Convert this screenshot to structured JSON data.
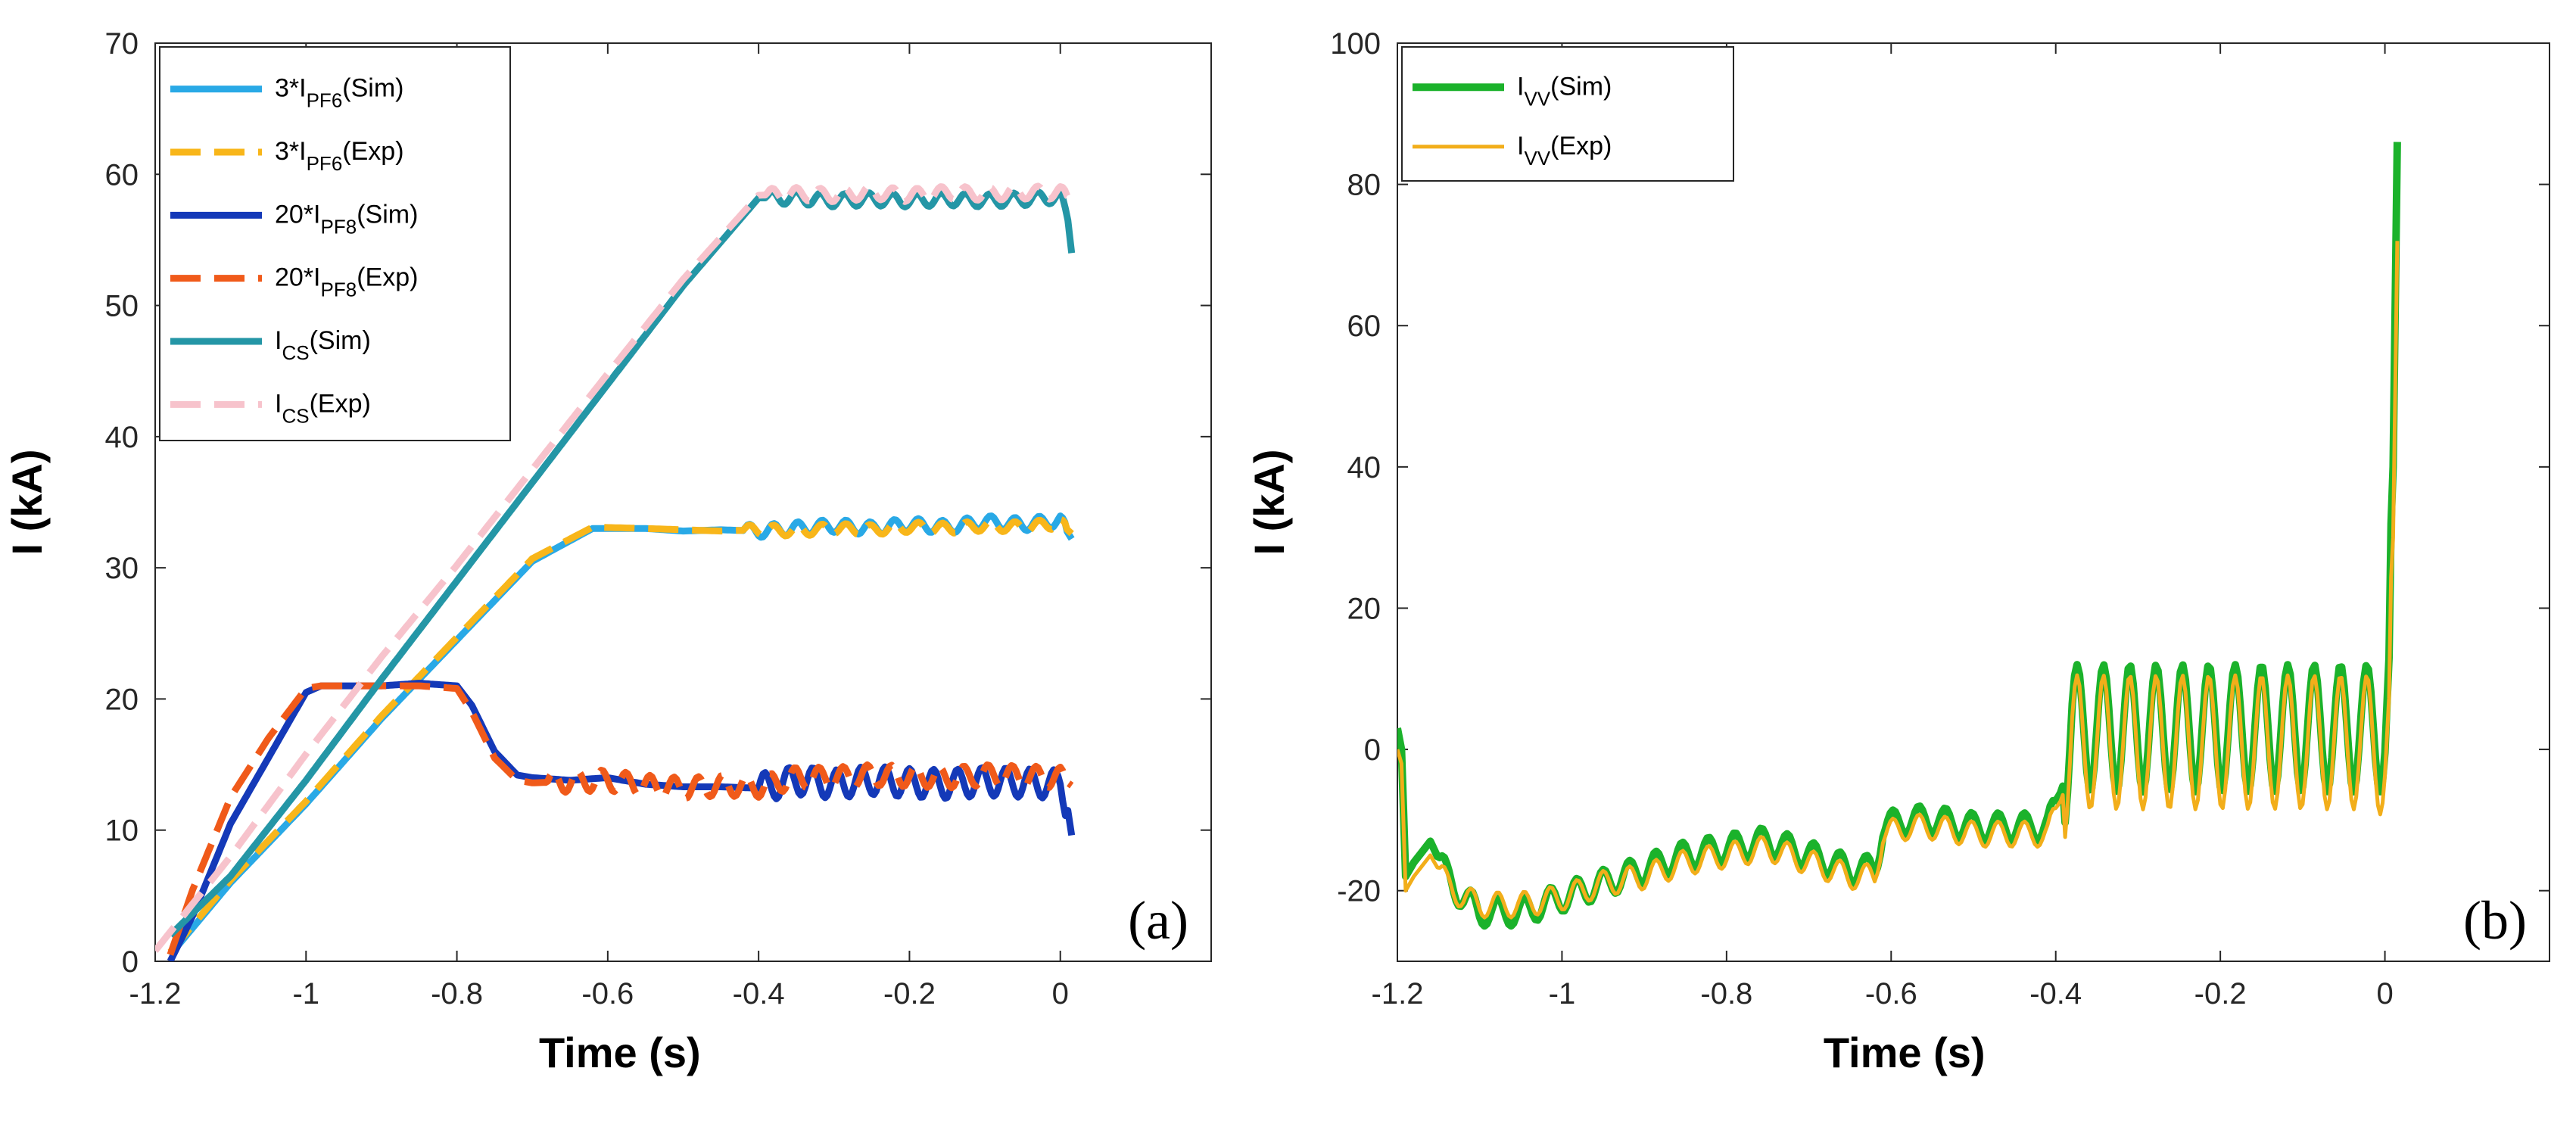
{
  "chart_data": [
    {
      "type": "line",
      "panel_label": "(a)",
      "xlabel": "Time (s)",
      "ylabel": "I (kA)",
      "xlim": [
        -1.2,
        0.2
      ],
      "ylim": [
        0,
        70
      ],
      "xticks": [
        -1.2,
        -1,
        -0.8,
        -0.6,
        -0.4,
        -0.2,
        0
      ],
      "xtick_labels": [
        "-1.2",
        "-1",
        "-0.8",
        "-0.6",
        "-0.4",
        "-0.2",
        "0"
      ],
      "yticks": [
        0,
        10,
        20,
        30,
        40,
        50,
        60,
        70
      ],
      "ytick_labels": [
        "0",
        "10",
        "20",
        "30",
        "40",
        "50",
        "60",
        "70"
      ],
      "grid": false,
      "legend_position": "top-left",
      "series": [
        {
          "key": "pf6-sim",
          "name_main": "3*I",
          "name_sub": "PF6",
          "name_tail": "(Sim)",
          "color": "#29a9e6",
          "style": "solid",
          "width": 9,
          "x": [
            -1.18,
            -1.1,
            -1.0,
            -0.9,
            -0.8,
            -0.7,
            -0.62,
            -0.55,
            -0.5,
            -0.45,
            -0.4,
            -0.35,
            -0.3,
            -0.25,
            -0.2,
            -0.15,
            -0.1,
            -0.05,
            0.0,
            0.015
          ],
          "y": [
            0.5,
            6,
            12,
            18.5,
            24.5,
            30.5,
            33.0,
            33.0,
            32.8,
            32.9,
            32.8,
            33.0,
            33.2,
            33.0,
            33.3,
            33.1,
            33.5,
            33.3,
            33.6,
            32.2
          ],
          "ripple_from": -0.42,
          "ripple_amp": 0.5
        },
        {
          "key": "pf6-exp",
          "name_main": "3*I",
          "name_sub": "PF6",
          "name_tail": "(Exp)",
          "color": "#f8b61a",
          "style": "dashed",
          "width": 9,
          "x": [
            -1.18,
            -1.1,
            -1.0,
            -0.9,
            -0.8,
            -0.7,
            -0.62,
            -0.55,
            -0.5,
            -0.45,
            -0.4,
            -0.35,
            -0.3,
            -0.25,
            -0.2,
            -0.15,
            -0.1,
            -0.05,
            0.0,
            0.015
          ],
          "y": [
            0.7,
            6.2,
            12.2,
            18.7,
            24.7,
            30.7,
            33.1,
            33.0,
            32.9,
            32.8,
            32.9,
            32.8,
            33.0,
            32.9,
            33.1,
            33.0,
            33.2,
            33.1,
            33.4,
            32.6
          ],
          "ripple_from": -0.42,
          "ripple_amp": 0.4
        },
        {
          "key": "pf8-sim",
          "name_main": "20*I",
          "name_sub": "PF8",
          "name_tail": "(Sim)",
          "color": "#1439b8",
          "style": "solid",
          "width": 9,
          "x": [
            -1.18,
            -1.15,
            -1.1,
            -1.05,
            -1.0,
            -0.98,
            -0.9,
            -0.85,
            -0.8,
            -0.78,
            -0.75,
            -0.72,
            -0.7,
            -0.65,
            -0.6,
            -0.55,
            -0.5,
            -0.45,
            -0.4,
            -0.35,
            -0.3,
            -0.25,
            -0.2,
            -0.15,
            -0.1,
            -0.05,
            0.0,
            0.01,
            0.015
          ],
          "y": [
            0,
            3.5,
            10.5,
            15.5,
            20.5,
            21.0,
            21.0,
            21.2,
            21.0,
            19.5,
            16.0,
            14.2,
            14.0,
            13.8,
            14.0,
            13.5,
            13.3,
            13.3,
            13.2,
            13.8,
            13.5,
            13.8,
            13.6,
            13.5,
            13.7,
            13.6,
            13.5,
            11.5,
            9.6
          ],
          "ripple_from": -0.4,
          "ripple_amp": 1.1
        },
        {
          "key": "pf8-exp",
          "name_main": "20*I",
          "name_sub": "PF8",
          "name_tail": "(Exp)",
          "color": "#f05a1a",
          "style": "dashed",
          "width": 9,
          "x": [
            -1.18,
            -1.15,
            -1.1,
            -1.05,
            -1.0,
            -0.98,
            -0.9,
            -0.85,
            -0.8,
            -0.78,
            -0.75,
            -0.72,
            -0.7,
            -0.65,
            -0.6,
            -0.55,
            -0.5,
            -0.45,
            -0.4,
            -0.35,
            -0.3,
            -0.25,
            -0.2,
            -0.15,
            -0.1,
            -0.05,
            0.0,
            0.015
          ],
          "y": [
            0.5,
            5.5,
            12.5,
            17.0,
            20.8,
            21.0,
            21.0,
            21.0,
            20.8,
            19.0,
            15.5,
            13.8,
            13.6,
            13.7,
            13.8,
            13.4,
            13.2,
            13.4,
            13.3,
            14.0,
            14.0,
            14.2,
            14.1,
            14.0,
            14.2,
            14.1,
            14.0,
            13.4
          ],
          "ripple_from": -0.68,
          "ripple_amp": 0.8
        },
        {
          "key": "cs-sim",
          "name_main": "I",
          "name_sub": "CS",
          "name_tail": "(Sim)",
          "color": "#2496a6",
          "style": "solid",
          "width": 9,
          "x": [
            -1.18,
            -1.1,
            -1.0,
            -0.9,
            -0.8,
            -0.7,
            -0.6,
            -0.5,
            -0.4,
            -0.35,
            -0.3,
            -0.25,
            -0.2,
            -0.15,
            -0.1,
            -0.05,
            0.0,
            0.01,
            0.015
          ],
          "y": [
            2.0,
            6.5,
            13.8,
            21.5,
            29.0,
            36.5,
            44.0,
            51.5,
            58.2,
            58.2,
            58.0,
            58.1,
            58.0,
            58.1,
            58.0,
            58.1,
            58.3,
            56.5,
            54.0
          ],
          "ripple_from": -0.39,
          "ripple_amp": 0.5
        },
        {
          "key": "cs-exp",
          "name_main": "I",
          "name_sub": "CS",
          "name_tail": "(Exp)",
          "color": "#f7c3cc",
          "style": "dashed",
          "width": 9,
          "x": [
            -1.2,
            -1.1,
            -1.0,
            -0.9,
            -0.8,
            -0.7,
            -0.6,
            -0.5,
            -0.4,
            -0.35,
            -0.3,
            -0.25,
            -0.2,
            -0.15,
            -0.1,
            -0.05,
            0.0,
            0.015
          ],
          "y": [
            0.8,
            8.0,
            15.8,
            23.2,
            30.2,
            37.5,
            44.8,
            52.0,
            58.4,
            58.5,
            58.4,
            58.6,
            58.4,
            58.6,
            58.5,
            58.6,
            58.6,
            58.2
          ],
          "ripple_from": -0.39,
          "ripple_amp": 0.5
        }
      ]
    },
    {
      "type": "line",
      "panel_label": "(b)",
      "xlabel": "Time (s)",
      "ylabel": "I (kA)",
      "xlim": [
        -1.2,
        0.2
      ],
      "ylim": [
        -30,
        100
      ],
      "xticks": [
        -1.2,
        -1,
        -0.8,
        -0.6,
        -0.4,
        -0.2,
        0
      ],
      "xtick_labels": [
        "-1.2",
        "-1",
        "-0.8",
        "-0.6",
        "-0.4",
        "-0.2",
        "0"
      ],
      "yticks": [
        -20,
        0,
        20,
        40,
        60,
        80,
        100
      ],
      "ytick_labels": [
        "-20",
        "0",
        "20",
        "40",
        "60",
        "80",
        "100"
      ],
      "grid": false,
      "legend_position": "top-left",
      "series": [
        {
          "key": "vv-sim",
          "name_main": "I",
          "name_sub": "VV",
          "name_tail": "(Sim)",
          "color": "#1bb22b",
          "style": "solid",
          "width": 10,
          "x": [
            -1.2,
            -1.195,
            -1.19,
            -1.18,
            -1.16,
            -1.14,
            -1.12,
            -1.1,
            -1.05,
            -1.0,
            -0.95,
            -0.9,
            -0.85,
            -0.8,
            -0.75,
            -0.7,
            -0.65,
            -0.62,
            -0.61,
            -0.58,
            -0.55,
            -0.5,
            -0.45,
            -0.41,
            -0.4,
            -0.38,
            -0.3,
            -0.2,
            -0.1,
            -0.02,
            0.0,
            0.005,
            0.01,
            0.015
          ],
          "y": [
            3,
            0,
            -18,
            -16,
            -13,
            -18,
            -21,
            -23,
            -23,
            -21,
            -19,
            -17,
            -15,
            -14,
            -13,
            -15,
            -17,
            -17,
            -11,
            -10,
            -10,
            -11,
            -11,
            -11,
            -8,
            3,
            3,
            3,
            3,
            3,
            3,
            8,
            40,
            86
          ],
          "ripple_from": -1.15,
          "ripple_amp": 2.0,
          "ripple_big_from": -0.39,
          "ripple_big_amp": 9.0
        },
        {
          "key": "vv-exp",
          "name_main": "I",
          "name_sub": "VV",
          "name_tail": "(Exp)",
          "color": "#f2ae1a",
          "style": "solid",
          "width": 5,
          "x": [
            -1.2,
            -1.195,
            -1.19,
            -1.18,
            -1.16,
            -1.14,
            -1.12,
            -1.1,
            -1.05,
            -1.0,
            -0.95,
            -0.9,
            -0.85,
            -0.8,
            -0.75,
            -0.7,
            -0.65,
            -0.62,
            -0.61,
            -0.58,
            -0.55,
            -0.5,
            -0.45,
            -0.41,
            -0.4,
            -0.38,
            -0.3,
            -0.2,
            -0.1,
            -0.02,
            0.0,
            0.005,
            0.01,
            0.015
          ],
          "y": [
            0,
            -2,
            -20,
            -18,
            -15,
            -19,
            -21,
            -22,
            -22,
            -21,
            -19,
            -18,
            -16,
            -15,
            -14,
            -16,
            -18,
            -18,
            -12,
            -11,
            -11,
            -12,
            -12,
            -12,
            -9,
            1,
            1,
            1,
            1,
            1,
            0,
            2,
            30,
            72
          ],
          "ripple_from": -1.15,
          "ripple_amp": 1.8,
          "ripple_big_from": -0.39,
          "ripple_big_amp": 9.5
        }
      ]
    }
  ]
}
